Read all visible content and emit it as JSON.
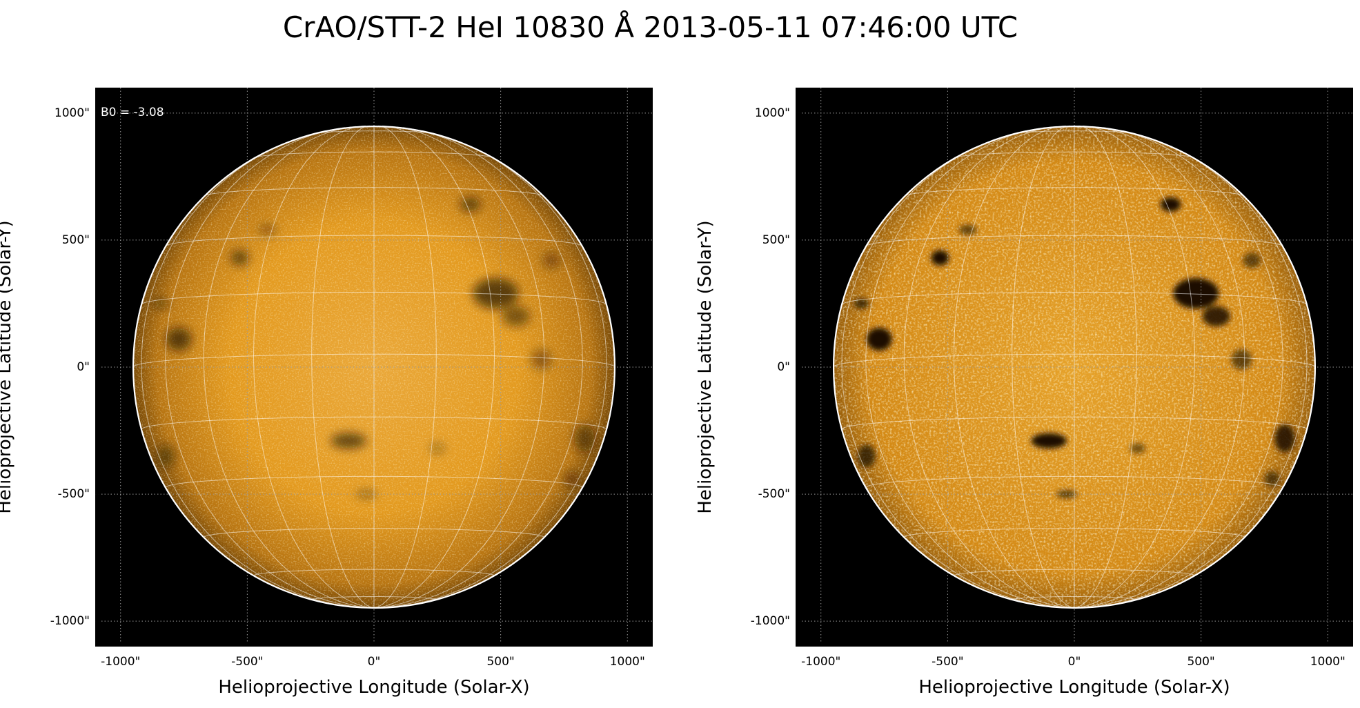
{
  "figure": {
    "title": "CrAO/STT-2 HeI 10830 Å 2013-05-11 07:46:00 UTC"
  },
  "colors": {
    "background": "#000000",
    "disk_center": "#e39a1f",
    "disk_limb": "#7a4b08",
    "grid": "#ffffff",
    "axes_grid": "#9a9a9a",
    "spot": "#1c1104"
  },
  "panels": [
    {
      "id": "left",
      "xlabel": "Helioprojective Longitude (Solar-X)",
      "ylabel": "Helioprojective Latitude (Solar-Y)",
      "annotation": "B0 = -3.08",
      "xticks": [
        "-1000\"",
        "-500\"",
        "0\"",
        "500\"",
        "1000\""
      ],
      "yticks": [
        "1000\"",
        "500\"",
        "0\"",
        "-500\"",
        "-1000\""
      ],
      "style": "smooth"
    },
    {
      "id": "right",
      "xlabel": "Helioprojective Longitude (Solar-X)",
      "ylabel": "Helioprojective Latitude (Solar-Y)",
      "xticks": [
        "-1000\"",
        "-500\"",
        "0\"",
        "500\"",
        "1000\""
      ],
      "yticks": [
        "1000\"",
        "500\"",
        "0\"",
        "-500\"",
        "-1000\""
      ],
      "style": "enhanced"
    }
  ],
  "map": {
    "axis_range_arcsec": [
      -1100,
      1100
    ],
    "tick_values_arcsec": [
      -1000,
      -500,
      0,
      500,
      1000
    ],
    "solar_radius_arcsec": 950,
    "b0_deg": -3.08,
    "grid_spacing_deg": 15
  },
  "features": [
    {
      "x": 380,
      "y": 640,
      "rx": 40,
      "ry": 28,
      "strength": 0.8
    },
    {
      "x": -530,
      "y": 430,
      "rx": 35,
      "ry": 30,
      "strength": 0.8
    },
    {
      "x": 480,
      "y": 290,
      "rx": 90,
      "ry": 60,
      "strength": 0.9
    },
    {
      "x": 560,
      "y": 200,
      "rx": 55,
      "ry": 40,
      "strength": 0.7
    },
    {
      "x": -770,
      "y": 110,
      "rx": 50,
      "ry": 45,
      "strength": 0.85
    },
    {
      "x": -840,
      "y": 250,
      "rx": 30,
      "ry": 20,
      "strength": 0.6
    },
    {
      "x": -100,
      "y": -290,
      "rx": 70,
      "ry": 30,
      "strength": 0.85
    },
    {
      "x": 830,
      "y": -280,
      "rx": 40,
      "ry": 55,
      "strength": 0.7
    },
    {
      "x": 780,
      "y": -440,
      "rx": 30,
      "ry": 30,
      "strength": 0.5
    },
    {
      "x": -30,
      "y": -500,
      "rx": 40,
      "ry": 15,
      "strength": 0.55
    },
    {
      "x": -420,
      "y": 540,
      "rx": 35,
      "ry": 20,
      "strength": 0.5
    },
    {
      "x": 700,
      "y": 420,
      "rx": 35,
      "ry": 30,
      "strength": 0.5
    },
    {
      "x": -820,
      "y": -350,
      "rx": 35,
      "ry": 45,
      "strength": 0.6
    },
    {
      "x": 660,
      "y": 30,
      "rx": 40,
      "ry": 40,
      "strength": 0.5
    },
    {
      "x": 250,
      "y": -320,
      "rx": 30,
      "ry": 20,
      "strength": 0.45
    }
  ]
}
